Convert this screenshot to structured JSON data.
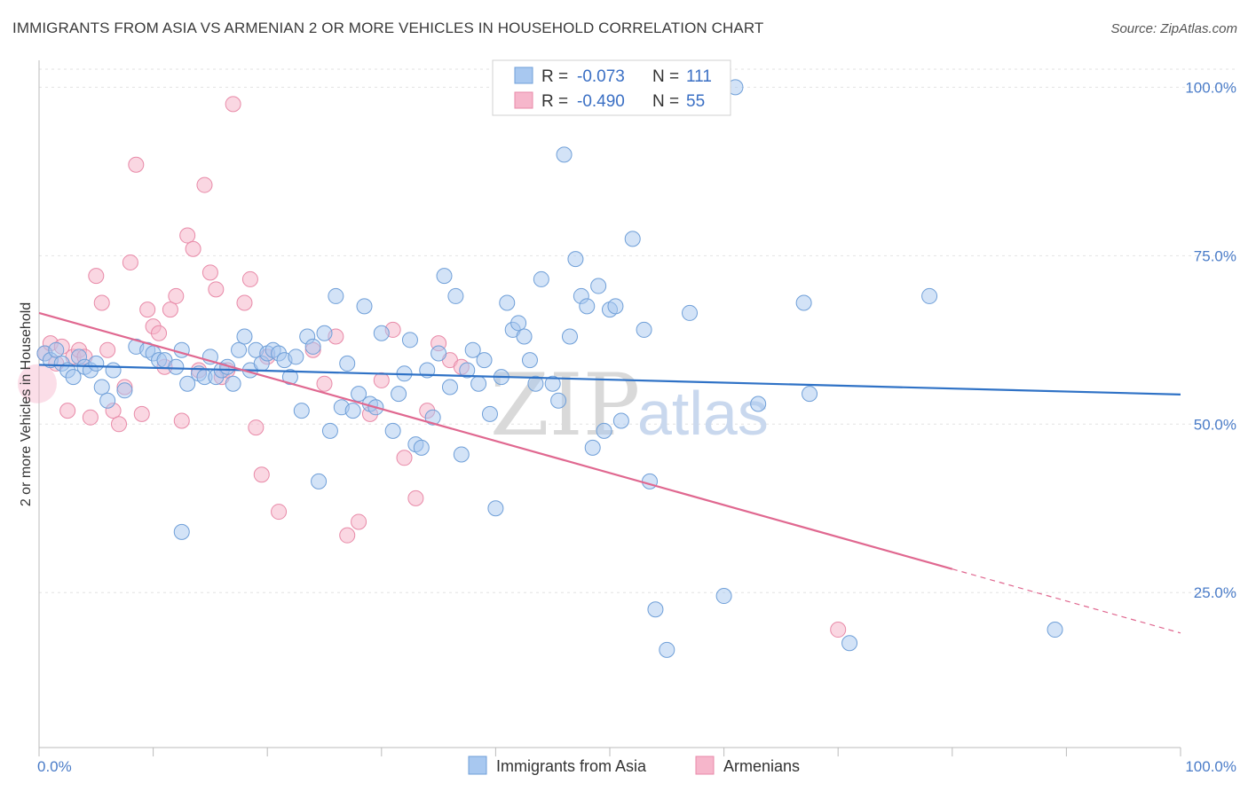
{
  "title": "IMMIGRANTS FROM ASIA VS ARMENIAN 2 OR MORE VEHICLES IN HOUSEHOLD CORRELATION CHART",
  "source": "Source: ZipAtlas.com",
  "watermark": {
    "zip": "ZIP",
    "atlas": "atlas"
  },
  "legend": {
    "r_label": "R =",
    "n_label": "N =",
    "rows": [
      {
        "r": "-0.073",
        "n": "111"
      },
      {
        "r": "-0.490",
        "n": "55"
      }
    ]
  },
  "colors": {
    "asia_fill": "#a8c8f0",
    "asia_stroke": "#6f9fd8",
    "asia_line": "#2f72c6",
    "arm_fill": "#f6b6cb",
    "arm_stroke": "#e88aa8",
    "arm_line": "#e06890",
    "grid": "#e2e2e2",
    "tick_label": "#4a7cc8"
  },
  "chart_data": {
    "type": "scatter",
    "title": "IMMIGRANTS FROM ASIA VS ARMENIAN 2 OR MORE VEHICLES IN HOUSEHOLD CORRELATION CHART",
    "xlabel": "",
    "ylabel": "2 or more Vehicles in Household",
    "xlim": [
      0,
      100
    ],
    "ylim": [
      2,
      104
    ],
    "x_tick_labels": [
      "0.0%",
      "100.0%"
    ],
    "y_ticks": [
      {
        "value": 25,
        "label": "25.0%"
      },
      {
        "value": 50,
        "label": "50.0%"
      },
      {
        "value": 75,
        "label": "75.0%"
      },
      {
        "value": 100,
        "label": "100.0%"
      }
    ],
    "grid": true,
    "legend_position": "top-center",
    "series": [
      {
        "name": "Immigrants from Asia",
        "trend": {
          "x1": 0,
          "y1": 58.8,
          "x2": 100,
          "y2": 54.4
        },
        "points": [
          [
            0.5,
            60.5
          ],
          [
            1,
            59.5
          ],
          [
            1.5,
            61
          ],
          [
            2,
            59
          ],
          [
            2.5,
            58
          ],
          [
            3,
            57
          ],
          [
            3.5,
            60
          ],
          [
            4,
            58.5
          ],
          [
            4.5,
            58
          ],
          [
            5,
            59
          ],
          [
            5.5,
            55.5
          ],
          [
            6,
            53.5
          ],
          [
            6.5,
            58
          ],
          [
            7.5,
            55
          ],
          [
            8.5,
            61.5
          ],
          [
            9.5,
            61
          ],
          [
            10,
            60.5
          ],
          [
            10.5,
            59.5
          ],
          [
            11,
            59.5
          ],
          [
            12,
            58.5
          ],
          [
            12.5,
            61
          ],
          [
            13,
            56
          ],
          [
            14,
            57.5
          ],
          [
            14.5,
            57
          ],
          [
            15,
            60
          ],
          [
            15.5,
            57
          ],
          [
            16,
            58
          ],
          [
            16.5,
            58.5
          ],
          [
            17,
            56
          ],
          [
            17.5,
            61
          ],
          [
            18,
            63
          ],
          [
            18.5,
            58
          ],
          [
            19,
            61
          ],
          [
            19.5,
            59
          ],
          [
            20,
            60.5
          ],
          [
            20.5,
            61
          ],
          [
            21,
            60.5
          ],
          [
            21.5,
            59.5
          ],
          [
            22,
            57
          ],
          [
            22.5,
            60
          ],
          [
            23,
            52
          ],
          [
            23.5,
            63
          ],
          [
            24,
            61.5
          ],
          [
            24.5,
            41.5
          ],
          [
            25,
            63.5
          ],
          [
            25.5,
            49
          ],
          [
            26,
            69
          ],
          [
            26.5,
            52.5
          ],
          [
            27,
            59
          ],
          [
            27.5,
            52
          ],
          [
            28,
            54.5
          ],
          [
            28.5,
            67.5
          ],
          [
            29,
            53
          ],
          [
            29.5,
            52.5
          ],
          [
            30,
            63.5
          ],
          [
            31,
            49
          ],
          [
            31.5,
            54.5
          ],
          [
            32,
            57.5
          ],
          [
            32.5,
            62.5
          ],
          [
            33,
            47
          ],
          [
            33.5,
            46.5
          ],
          [
            34,
            58
          ],
          [
            34.5,
            51
          ],
          [
            35,
            60.5
          ],
          [
            35.5,
            72
          ],
          [
            36,
            55.5
          ],
          [
            36.5,
            69
          ],
          [
            37,
            45.5
          ],
          [
            37.5,
            58
          ],
          [
            38,
            61
          ],
          [
            38.5,
            56
          ],
          [
            39,
            59.5
          ],
          [
            39.5,
            51.5
          ],
          [
            40,
            37.5
          ],
          [
            40.5,
            57
          ],
          [
            41,
            68
          ],
          [
            41.5,
            64
          ],
          [
            42,
            65
          ],
          [
            42.5,
            63
          ],
          [
            43,
            59.5
          ],
          [
            43.5,
            56
          ],
          [
            44,
            71.5
          ],
          [
            45,
            56
          ],
          [
            45.5,
            53.5
          ],
          [
            46,
            90
          ],
          [
            46.5,
            63
          ],
          [
            47,
            74.5
          ],
          [
            47.5,
            69
          ],
          [
            48,
            67.5
          ],
          [
            48.5,
            46.5
          ],
          [
            49,
            70.5
          ],
          [
            49.5,
            49
          ],
          [
            50,
            67
          ],
          [
            50.5,
            67.5
          ],
          [
            51,
            50.5
          ],
          [
            52,
            77.5
          ],
          [
            53,
            64
          ],
          [
            53.5,
            41.5
          ],
          [
            54,
            22.5
          ],
          [
            54.5,
            100
          ],
          [
            55,
            16.5
          ],
          [
            57,
            66.5
          ],
          [
            60,
            24.5
          ],
          [
            61,
            100
          ],
          [
            63,
            53
          ],
          [
            67,
            68
          ],
          [
            67.5,
            54.5
          ],
          [
            71,
            17.5
          ],
          [
            78,
            69
          ],
          [
            89,
            19.5
          ],
          [
            12.5,
            34
          ]
        ]
      },
      {
        "name": "Armenians",
        "trend": {
          "x1": 0,
          "y1": 66.5,
          "x2": 80,
          "y2": 28.5,
          "x3": 100,
          "y3": 19
        },
        "points": [
          [
            0.5,
            60.5
          ],
          [
            1,
            62
          ],
          [
            1.5,
            59
          ],
          [
            2,
            61.5
          ],
          [
            2.5,
            52
          ],
          [
            3,
            60
          ],
          [
            3.5,
            61
          ],
          [
            4,
            60
          ],
          [
            4.5,
            51
          ],
          [
            5,
            72
          ],
          [
            5.5,
            68
          ],
          [
            6,
            61
          ],
          [
            6.5,
            52
          ],
          [
            7,
            50
          ],
          [
            7.5,
            55.5
          ],
          [
            8,
            74
          ],
          [
            8.5,
            88.5
          ],
          [
            9,
            51.5
          ],
          [
            9.5,
            67
          ],
          [
            10,
            64.5
          ],
          [
            10.5,
            63.5
          ],
          [
            11,
            58.5
          ],
          [
            11.5,
            67
          ],
          [
            12,
            69
          ],
          [
            12.5,
            50.5
          ],
          [
            13,
            78
          ],
          [
            13.5,
            76
          ],
          [
            14,
            58
          ],
          [
            14.5,
            85.5
          ],
          [
            15,
            72.5
          ],
          [
            15.5,
            70
          ],
          [
            16,
            57
          ],
          [
            16.5,
            58
          ],
          [
            17,
            97.5
          ],
          [
            18,
            68
          ],
          [
            18.5,
            71.5
          ],
          [
            19,
            49.5
          ],
          [
            19.5,
            42.5
          ],
          [
            20,
            60
          ],
          [
            21,
            37
          ],
          [
            24,
            61
          ],
          [
            25,
            56
          ],
          [
            26,
            63
          ],
          [
            27,
            33.5
          ],
          [
            28,
            35.5
          ],
          [
            29,
            51.5
          ],
          [
            30,
            56.5
          ],
          [
            31,
            64
          ],
          [
            32,
            45
          ],
          [
            33,
            39
          ],
          [
            34,
            52
          ],
          [
            35,
            62
          ],
          [
            36,
            59.5
          ],
          [
            37,
            58.5
          ],
          [
            70,
            19.5
          ]
        ]
      }
    ]
  },
  "bottom_legend": [
    "Immigrants from Asia",
    "Armenians"
  ]
}
